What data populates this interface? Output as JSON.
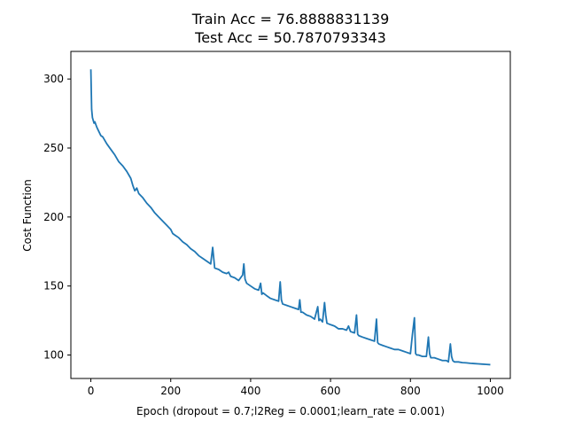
{
  "chart_data": {
    "type": "line",
    "title_lines": [
      "Train Acc = 76.8888831139",
      "Test Acc = 50.7870793343"
    ],
    "xlabel": "Epoch (dropout = 0.7;l2Reg = 0.0001;learn_rate = 0.001)",
    "ylabel": "Cost Function",
    "xlim": [
      -50,
      1050
    ],
    "ylim": [
      83,
      320
    ],
    "x_ticks": [
      0,
      200,
      400,
      600,
      800,
      1000
    ],
    "y_ticks": [
      100,
      150,
      200,
      250,
      300
    ],
    "grid": false,
    "legend": "none",
    "line_color": "#1f77b4",
    "series": [
      {
        "x": [
          0,
          2,
          4,
          6,
          8,
          10,
          15,
          20,
          25,
          30,
          40,
          50,
          60,
          70,
          80,
          90,
          100,
          105,
          110,
          115,
          120,
          130,
          140,
          150,
          160,
          170,
          180,
          190,
          200,
          205,
          210,
          220,
          230,
          240,
          250,
          260,
          270,
          280,
          290,
          300,
          305,
          310,
          320,
          330,
          340,
          345,
          350,
          360,
          370,
          380,
          383,
          386,
          390,
          400,
          410,
          420,
          425,
          428,
          431,
          440,
          450,
          460,
          470,
          474,
          477,
          480,
          490,
          500,
          510,
          520,
          523,
          526,
          530,
          540,
          550,
          560,
          568,
          571,
          574,
          580,
          585,
          588,
          591,
          600,
          610,
          620,
          630,
          640,
          645,
          650,
          660,
          665,
          668,
          671,
          680,
          690,
          700,
          710,
          715,
          718,
          721,
          730,
          740,
          750,
          760,
          770,
          780,
          790,
          800,
          805,
          810,
          813,
          816,
          820,
          830,
          840,
          845,
          848,
          851,
          860,
          870,
          880,
          890,
          895,
          900,
          903,
          906,
          910,
          920,
          930,
          940,
          950,
          960,
          970,
          980,
          990,
          1000
        ],
        "y": [
          307,
          278,
          272,
          270,
          268,
          269,
          265,
          262,
          259,
          258,
          253,
          249,
          245,
          240,
          237,
          233,
          228,
          223,
          219,
          221,
          217,
          214,
          210,
          207,
          203,
          200,
          197,
          194,
          191,
          188,
          187,
          185,
          182,
          180,
          177,
          175,
          172,
          170,
          168,
          166,
          178,
          163,
          162,
          160,
          159,
          160,
          157,
          156,
          154,
          158,
          166,
          155,
          152,
          150,
          148,
          147,
          152,
          144,
          145,
          143,
          141,
          140,
          139,
          153,
          140,
          137,
          136,
          135,
          134,
          133,
          140,
          131,
          131,
          129,
          128,
          126,
          135,
          125,
          126,
          124,
          138,
          129,
          123,
          122,
          121,
          119,
          119,
          118,
          121,
          117,
          116,
          129,
          115,
          114,
          113,
          112,
          111,
          110,
          126,
          109,
          108,
          107,
          106,
          105,
          104,
          104,
          103,
          102,
          101,
          115,
          127,
          101,
          100,
          100,
          99,
          99,
          113,
          101,
          98,
          98,
          97,
          96,
          96,
          95,
          108,
          99,
          96,
          95,
          95,
          94.5,
          94.3,
          94,
          93.8,
          93.6,
          93.4,
          93.2,
          93
        ]
      }
    ]
  }
}
